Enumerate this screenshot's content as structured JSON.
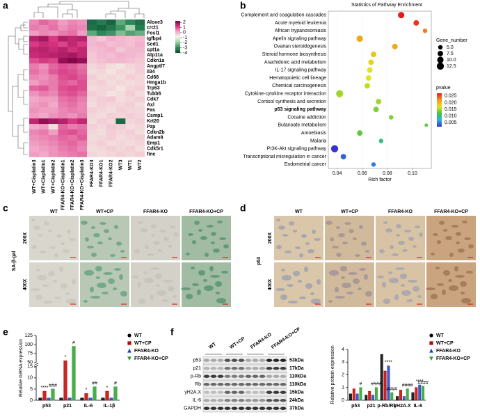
{
  "panel_labels": [
    "a",
    "b",
    "c",
    "d",
    "e",
    "f"
  ],
  "chart_data": [
    {
      "type": "heatmap",
      "rows": [
        "Aloxe3",
        "crct1",
        "Fosl1",
        "Igfbp4",
        "Scd1",
        "cpt1a",
        "Atp11a",
        "Cdkn1a",
        "Angptl7",
        "Il34",
        "Cd68",
        "Hmga1b",
        "Trp53",
        "Tubb6",
        "Cdk7",
        "Axl",
        "Fas",
        "Csmp1",
        "Krt20",
        "Pzp",
        "Cdkn2b",
        "Adam8",
        "Emp1",
        "Cdk5r1",
        "finc"
      ],
      "columns": [
        "WT+Cisplatin3",
        "WT+Cisplatin1",
        "WT+Cisplatin2",
        "FFAR4-KO+Cisplatin1",
        "FFAR4-KO+Cisplatin2",
        "FFAR4-KO+Cisplatin3",
        "FFAR4-KO3",
        "FFAR4-KO1",
        "FFAR4-KO2",
        "WT3",
        "WT1",
        "WT2"
      ],
      "values": [
        [
          0.5,
          0.8,
          0.6,
          0.3,
          0.5,
          0.4,
          -3.5,
          -3.2,
          -3.6,
          -2.5,
          -3,
          -3.4
        ],
        [
          0.6,
          0.5,
          0.7,
          0.4,
          0.6,
          0.5,
          -3.4,
          -3.6,
          -3.3,
          -2.8,
          -1.8,
          -3.2
        ],
        [
          0.3,
          0.5,
          0.4,
          0.6,
          0.7,
          0.3,
          -2.5,
          -3,
          -2.8,
          -2.2,
          -2.6,
          -2.4
        ],
        [
          1.6,
          1.8,
          1.2,
          1.7,
          1.5,
          1.6,
          0,
          -0.2,
          0.1,
          0,
          -0.1,
          0
        ],
        [
          1.2,
          1.4,
          1.3,
          1.1,
          1.5,
          1.2,
          0,
          0.1,
          -0.1,
          0,
          -0.1,
          0.1
        ],
        [
          1.5,
          1.6,
          1.4,
          1.6,
          1.3,
          1.5,
          -0.1,
          0,
          0.1,
          -0.2,
          0,
          0
        ],
        [
          1.4,
          1.5,
          1.6,
          1.7,
          1.8,
          1.5,
          -0.2,
          0,
          -0.1,
          0.1,
          0,
          -0.1
        ],
        [
          1,
          1.2,
          1.1,
          2,
          2.2,
          2,
          -0.2,
          -0.1,
          0,
          0,
          -0.1,
          -0.2
        ],
        [
          0.6,
          0.4,
          0.8,
          1,
          0.9,
          0.7,
          -0.4,
          -0.3,
          -0.5,
          -0.6,
          -0.4,
          -0.3
        ],
        [
          0.7,
          0.5,
          0.9,
          1.1,
          1,
          0.8,
          -0.5,
          -0.4,
          -0.6,
          -0.4,
          -0.5,
          -0.3
        ],
        [
          0.5,
          0.4,
          0.6,
          1,
          1.1,
          0.9,
          -0.3,
          -0.5,
          -0.4,
          -0.5,
          -0.3,
          -0.4
        ],
        [
          0.3,
          0.5,
          0.6,
          0.9,
          0.8,
          1,
          -0.4,
          -0.3,
          -0.5,
          -0.4,
          -0.5,
          -0.4
        ],
        [
          0.8,
          0.9,
          0.6,
          1,
          1.1,
          1,
          -0.5,
          -0.4,
          -0.4,
          -0.6,
          -0.4,
          -0.3
        ],
        [
          0.4,
          0.6,
          0.5,
          0.9,
          1,
          0.8,
          -0.3,
          -0.4,
          -0.6,
          -0.5,
          -0.3,
          -0.5
        ],
        [
          0.2,
          0.3,
          0.3,
          0.7,
          0.8,
          0.6,
          -0.4,
          -0.3,
          -0.2,
          -0.5,
          -0.4,
          -0.3
        ],
        [
          0.3,
          0.4,
          0.2,
          0.6,
          0.7,
          0.5,
          -0.5,
          -0.3,
          -0.4,
          -0.4,
          -0.3,
          -0.5
        ],
        [
          0.4,
          0.3,
          0.3,
          0.5,
          0.6,
          0.5,
          -0.3,
          -0.4,
          -0.5,
          -0.3,
          -0.4,
          -0.4
        ],
        [
          0.3,
          0.2,
          0.4,
          0.5,
          0.4,
          0.6,
          -0.4,
          -0.5,
          -0.3,
          -0.4,
          -0.3,
          -0.4
        ],
        [
          1.5,
          2,
          1.8,
          1.6,
          1.2,
          1.5,
          -0.5,
          -0.3,
          -0.4,
          -3.5,
          -0.4,
          -0.3
        ],
        [
          0.2,
          0.3,
          -0.5,
          0.8,
          0.6,
          0.7,
          -0.3,
          -0.4,
          -0.2,
          -0.3,
          -0.5,
          -0.4
        ],
        [
          0.5,
          0.6,
          0.3,
          0.9,
          1,
          0.8,
          -0.4,
          -0.5,
          -0.3,
          -0.4,
          -0.3,
          -0.5
        ],
        [
          0.4,
          0.5,
          0.6,
          0.8,
          0.7,
          0.9,
          -0.5,
          -0.4,
          -0.3,
          -0.5,
          -0.4,
          -0.3
        ],
        [
          0.3,
          0.4,
          0.5,
          0.7,
          0.8,
          0.6,
          -0.4,
          -0.3,
          -0.5,
          -0.4,
          -0.5,
          -0.4
        ],
        [
          0.2,
          0.3,
          0.4,
          0.6,
          0.7,
          0.5,
          -0.5,
          -0.4,
          -0.3,
          -0.4,
          -0.3,
          -0.5
        ],
        [
          0.3,
          0.2,
          0.4,
          0.5,
          0.6,
          0.7,
          -0.4,
          -0.5,
          -0.4,
          -0.3,
          -0.4,
          -0.3
        ]
      ],
      "clim": [
        -4,
        2.3
      ],
      "cticks": [
        2,
        1,
        0,
        -1,
        -2,
        -3,
        -4
      ],
      "colors": [
        "#0b4f32",
        "#2f8a5c",
        "#9fd0a6",
        "#f4f7e6",
        "#f2a9c9",
        "#d6337f",
        "#7a0145"
      ],
      "highlight_rows": [
        7,
        12
      ],
      "highlight_color": "#e41a1c"
    },
    {
      "type": "dot",
      "title": "Statistics of Pathway Enrichment",
      "xlabel": "Rich factor",
      "categories": [
        "Complement and coagulation cascades",
        "Acute myeloid leukemia",
        "African trypanosomiasis",
        "Apelin signaling pathway",
        "Ovarian steroidogenesis",
        "Steroid hormone biosynthesis",
        "Arachidonic acid metabolism",
        "IL-17 signaling pathway",
        "Hematopoietic cell lineage",
        "Chemical carcinogenesis",
        "Cytokine-cytokine receptor interaction",
        "Cortisol synthesis and secretion",
        "p53 signaling pathway",
        "Cocaine addiction",
        "Butanoate metabolism",
        "Amoebiasis",
        "Malaria",
        "PI3K-Akt signaling pathway",
        "Transcriptional misregulation in cancer",
        "Endometrial cancer"
      ],
      "x": [
        0.091,
        0.103,
        0.11,
        0.058,
        0.086,
        0.069,
        0.067,
        0.066,
        0.065,
        0.064,
        0.042,
        0.073,
        0.071,
        0.083,
        0.111,
        0.058,
        0.075,
        0.038,
        0.045,
        0.069
      ],
      "sizes": [
        10,
        7.5,
        5,
        10,
        7.5,
        7.5,
        7.5,
        7.5,
        7.5,
        7.5,
        12.5,
        7.5,
        7.5,
        5,
        3,
        7.5,
        5,
        12.5,
        7.5,
        5
      ],
      "pvalues": [
        0.002,
        0.003,
        0.006,
        0.008,
        0.008,
        0.01,
        0.011,
        0.012,
        0.012,
        0.013,
        0.014,
        0.014,
        0.015,
        0.015,
        0.016,
        0.016,
        0.019,
        0.027,
        0.025,
        0.024
      ],
      "xlim": [
        0.033,
        0.115
      ],
      "xticks": [
        0.04,
        0.06,
        0.08,
        {
          "value": 0.1,
          "label": "0.10"
        }
      ],
      "highlight_index": 12,
      "highlight_color": "#e41a1c",
      "size_legend": {
        "title": "Gene_number",
        "values": [
          {
            "value": 5,
            "label": "5.0"
          },
          7.5,
          {
            "value": 10,
            "label": "10.0"
          },
          12.5
        ]
      },
      "color_legend": {
        "title": "pvalue",
        "lim": [
          0.002,
          0.027
        ],
        "ticks": [
          0.025,
          {
            "value": 0.02,
            "label": "0.020"
          },
          0.015,
          {
            "value": 0.01,
            "label": "0.010"
          },
          0.005
        ]
      },
      "colors": [
        "#e8191a",
        "#f39a1b",
        "#e3e21c",
        "#40c444",
        "#29b6dc",
        "#3a2fd0"
      ]
    },
    {
      "type": "bar",
      "ylabel": "Relative mRNA expression",
      "categories": [
        "p53",
        "p21",
        "IL-6",
        "IL-1β"
      ],
      "ylim": [
        0,
        125
      ],
      "ybreak": [
        15,
        50
      ],
      "yticks": [
        0,
        5,
        10,
        15,
        50,
        75,
        100,
        125
      ],
      "series": [
        {
          "name": "WT",
          "color": "#000000",
          "marker": "circle",
          "values": [
            1,
            1,
            1,
            1
          ]
        },
        {
          "name": "WT+CP",
          "color": "#c00000",
          "marker": "square",
          "values": [
            4,
            55,
            3,
            4
          ],
          "annotations": [
            "****",
            "*",
            "*",
            "*"
          ]
        },
        {
          "name": "FFAR4-KO",
          "color": "#1f3fbf",
          "marker": "triangle",
          "values": [
            1,
            1,
            1,
            1
          ]
        },
        {
          "name": "FFAR4-KO+CP",
          "color": "#2ca02c",
          "marker": "triangle-down",
          "values": [
            5,
            95,
            6,
            6
          ],
          "annotations": [
            "###",
            "#",
            "##",
            "#"
          ]
        }
      ]
    },
    {
      "type": "bar",
      "ylabel": "Relative protein expression",
      "categories": [
        "p53",
        "p21",
        "p-Rb/Rb",
        "γH2A.X",
        "IL-6"
      ],
      "ylim": [
        0,
        4
      ],
      "yticks": [
        0,
        1,
        2,
        3,
        4
      ],
      "series": [
        {
          "name": "WT",
          "color": "#000000",
          "marker": "circle",
          "values": [
            0.5,
            0.4,
            3.6,
            0.3,
            0.6
          ]
        },
        {
          "name": "WT+CP",
          "color": "#c00000",
          "marker": "square",
          "values": [
            0.9,
            0.7,
            2.3,
            0.8,
            1
          ]
        },
        {
          "name": "FFAR4-KO",
          "color": "#1f3fbf",
          "marker": "triangle",
          "values": [
            0.5,
            0.4,
            2.7,
            0.3,
            1.2
          ],
          "annotations": [
            null,
            null,
            "****",
            null,
            "****"
          ]
        },
        {
          "name": "FFAR4-KO+CP",
          "color": "#2ca02c",
          "marker": "triangle-down",
          "values": [
            1,
            1,
            0.6,
            0.9,
            1.1
          ],
          "annotations": [
            "#",
            "####",
            "####",
            "####",
            "####"
          ]
        }
      ]
    }
  ],
  "micrographs": [
    {
      "row_label": "SA-β-gal",
      "columns": [
        "WT",
        "WT+CP",
        "FFAR4-KO",
        "FFAR4-KO+CP"
      ],
      "magnifications": [
        "200X",
        "400X"
      ]
    },
    {
      "row_label": "p53",
      "columns": [
        "WT",
        "WT+CP",
        "FFAR4-KO",
        "FFAR4-KO+CP"
      ],
      "magnifications": [
        "200X",
        "400X"
      ]
    }
  ],
  "blot": {
    "lanes": [
      "WT",
      "WT+CP",
      "FFAR4-KO",
      "FFAR4-KO+CP"
    ],
    "proteins": [
      "p53",
      "p21",
      "p-Rb",
      "Rb",
      "γH2A.X",
      "IL-6",
      "GAPDH"
    ],
    "sizes": [
      "53kDa",
      "17kDa",
      "110kDa",
      "110kDa",
      "15kDa",
      "24kDa",
      "37kDa"
    ]
  }
}
